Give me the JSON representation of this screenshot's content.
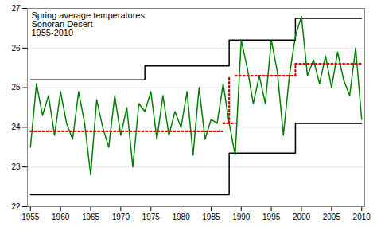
{
  "chart_data": {
    "type": "line",
    "title": "Spring average temperatures\nSonoran Desert\n1955-2010",
    "series": [
      {
        "color": "#000000",
        "line_style": "solid",
        "x": [
          1955,
          1974,
          1974,
          1988,
          1988,
          1999,
          1999,
          2010
        ],
        "values": [
          25.2,
          25.2,
          25.55,
          25.55,
          26.2,
          26.2,
          26.75,
          26.75
        ]
      },
      {
        "color": "#000000",
        "line_style": "solid",
        "x": [
          1955,
          1988,
          1988,
          1999,
          1999,
          2010
        ],
        "values": [
          22.3,
          22.3,
          23.35,
          23.35,
          24.1,
          24.1
        ]
      },
      {
        "color": "#008000",
        "line_style": "solid",
        "x": [
          1955,
          1956,
          1957,
          1958,
          1959,
          1960,
          1961,
          1962,
          1963,
          1964,
          1965,
          1966,
          1967,
          1968,
          1969,
          1970,
          1971,
          1972,
          1973,
          1974,
          1975,
          1976,
          1977,
          1978,
          1979,
          1980,
          1981,
          1982,
          1983,
          1984,
          1985,
          1986,
          1987,
          1988,
          1989,
          1990,
          1991,
          1992,
          1993,
          1994,
          1995,
          1996,
          1997,
          1998,
          1999,
          2000,
          2001,
          2002,
          2003,
          2004,
          2005,
          2006,
          2007,
          2008,
          2009,
          2010
        ],
        "values": [
          23.5,
          25.1,
          24.3,
          24.8,
          23.8,
          24.9,
          24.1,
          23.7,
          24.9,
          24.1,
          22.8,
          24.7,
          24.0,
          23.5,
          24.8,
          23.8,
          24.5,
          23.0,
          24.6,
          24.4,
          24.9,
          23.7,
          24.8,
          23.8,
          24.4,
          24.0,
          24.9,
          23.3,
          25.0,
          23.7,
          24.2,
          24.1,
          25.1,
          24.1,
          23.3,
          26.2,
          25.5,
          24.6,
          25.3,
          24.6,
          26.2,
          25.4,
          23.8,
          25.3,
          26.3,
          26.8,
          25.3,
          25.7,
          25.1,
          25.8,
          25.0,
          25.9,
          25.2,
          24.8,
          26.0,
          24.2
        ]
      },
      {
        "color": "#dd0000",
        "line_style": "dotted",
        "x": [
          1955,
          1987
        ],
        "values": [
          23.9,
          23.9
        ]
      },
      {
        "color": "#dd0000",
        "line_style": "dotted",
        "x": [
          1988,
          1988
        ],
        "values": [
          24.1,
          25.3
        ]
      },
      {
        "color": "#dd0000",
        "line_style": "dotted",
        "x": [
          1987,
          1989
        ],
        "values": [
          24.1,
          24.1
        ]
      },
      {
        "color": "#dd0000",
        "line_style": "dotted",
        "x": [
          1989,
          1999
        ],
        "values": [
          25.3,
          25.3
        ]
      },
      {
        "color": "#dd0000",
        "line_style": "dotted",
        "x": [
          1999,
          1999
        ],
        "values": [
          25.3,
          25.6
        ]
      },
      {
        "color": "#dd0000",
        "line_style": "dotted",
        "x": [
          1999,
          2010
        ],
        "values": [
          25.6,
          25.6
        ]
      }
    ],
    "xlim": [
      1954.5,
      2010.5
    ],
    "ylim": [
      22,
      27
    ],
    "xticks": [
      1955,
      1960,
      1965,
      1970,
      1975,
      1980,
      1985,
      1990,
      1995,
      2000,
      2005,
      2010
    ],
    "yticks": [
      22,
      23,
      24,
      25,
      26,
      27
    ],
    "grid": true
  }
}
